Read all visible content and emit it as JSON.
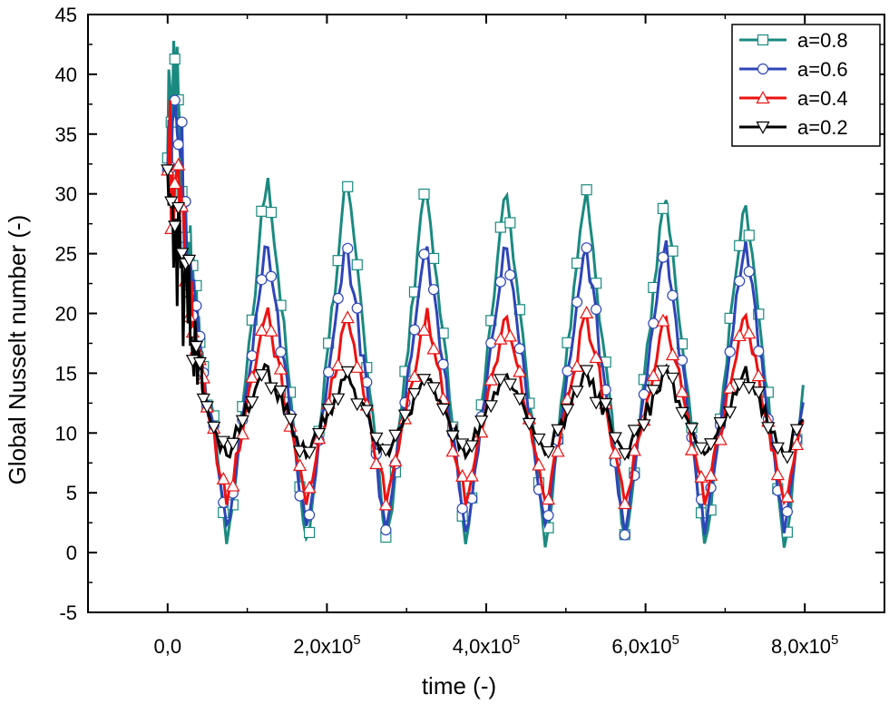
{
  "chart_data": {
    "type": "line",
    "title": "",
    "xlabel": "time (-)",
    "ylabel": "Global Nusselt number (-)",
    "xlim": [
      -100000,
      900000
    ],
    "ylim": [
      -5,
      45
    ],
    "x_ticks": [
      {
        "value": 0,
        "mantissa": "0,0",
        "exponent": ""
      },
      {
        "value": 200000,
        "mantissa": "2,0x10",
        "exponent": "5"
      },
      {
        "value": 400000,
        "mantissa": "4,0x10",
        "exponent": "5"
      },
      {
        "value": 600000,
        "mantissa": "6,0x10",
        "exponent": "5"
      },
      {
        "value": 800000,
        "mantissa": "8,0x10",
        "exponent": "5"
      }
    ],
    "y_ticks": [
      -5,
      0,
      5,
      10,
      15,
      20,
      25,
      30,
      35,
      40,
      45
    ],
    "y_tick_labels": [
      "-5",
      "0",
      "5",
      "10",
      "15",
      "20",
      "25",
      "30",
      "35",
      "40",
      "45"
    ],
    "legend_position": "top-right",
    "period": 100000,
    "transient_end": 50000,
    "series": [
      {
        "name": "a=0.8",
        "color": "#1a8a80",
        "marker": "square",
        "initial_value": 33,
        "initial_peak": 44,
        "peak_values": [
          32,
          32,
          32,
          31,
          31,
          31,
          30
        ],
        "min_value": 0
      },
      {
        "name": "a=0.6",
        "color": "#2e45b8",
        "marker": "circle",
        "initial_value": 32,
        "initial_peak": 39,
        "peak_values": [
          27,
          26,
          26,
          26,
          26,
          26,
          26
        ],
        "min_value": 1
      },
      {
        "name": "a=0.4",
        "color": "#ee1111",
        "marker": "triangle-up",
        "initial_value": 32,
        "initial_peak": 34,
        "peak_values": [
          21,
          20,
          20,
          20,
          20,
          20,
          20
        ],
        "min_value": 4
      },
      {
        "name": "a=0.2",
        "color": "#000000",
        "marker": "triangle-down",
        "initial_value": 32,
        "initial_peak": 30,
        "peak_values": [
          16,
          15,
          15,
          15,
          15,
          15,
          15
        ],
        "min_value": 8
      }
    ]
  }
}
